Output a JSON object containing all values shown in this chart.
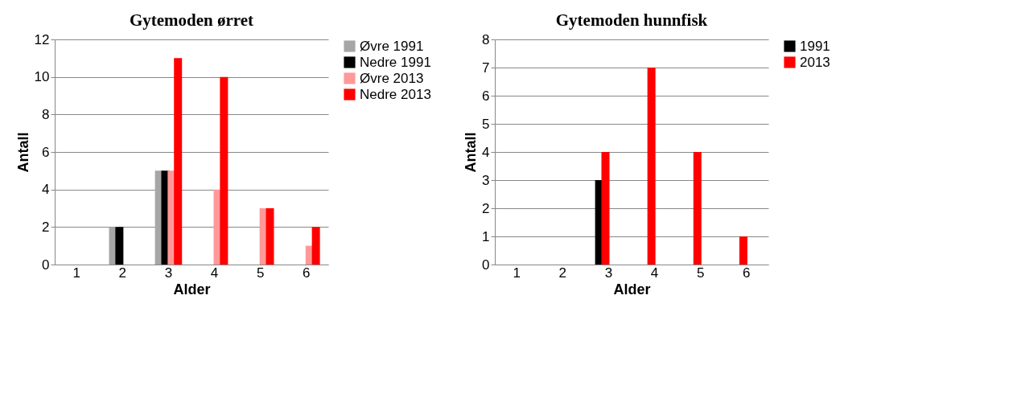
{
  "chart_data": [
    {
      "type": "bar",
      "title": "Gytemoden ørret",
      "xlabel": "Alder",
      "ylabel": "Antall",
      "categories": [
        "1",
        "2",
        "3",
        "4",
        "5",
        "6"
      ],
      "series": [
        {
          "name": "Øvre 1991",
          "color": "#a6a6a6",
          "values": [
            0,
            2,
            5,
            0,
            0,
            0
          ]
        },
        {
          "name": "Nedre 1991",
          "color": "#000000",
          "values": [
            0,
            2,
            5,
            0,
            0,
            0
          ]
        },
        {
          "name": "Øvre 2013",
          "color": "#ff9999",
          "values": [
            0,
            0,
            5,
            4,
            3,
            1
          ]
        },
        {
          "name": "Nedre 2013",
          "color": "#ff0000",
          "values": [
            0,
            0,
            11,
            10,
            3,
            2
          ]
        }
      ],
      "ylim": [
        0,
        12
      ],
      "yticks": [
        0,
        2,
        4,
        6,
        8,
        10,
        12
      ],
      "grid": "y",
      "legend": "right"
    },
    {
      "type": "bar",
      "title": "Gytemoden hunnfisk",
      "xlabel": "Alder",
      "ylabel": "Antall",
      "categories": [
        "1",
        "2",
        "3",
        "4",
        "5",
        "6"
      ],
      "series": [
        {
          "name": "1991",
          "color": "#000000",
          "values": [
            0,
            0,
            3,
            0,
            0,
            0
          ]
        },
        {
          "name": "2013",
          "color": "#ff0000",
          "values": [
            0,
            0,
            4,
            7,
            4,
            1
          ]
        }
      ],
      "ylim": [
        0,
        8
      ],
      "yticks": [
        0,
        1,
        2,
        3,
        4,
        5,
        6,
        7,
        8
      ],
      "grid": "y",
      "legend": "right"
    }
  ]
}
